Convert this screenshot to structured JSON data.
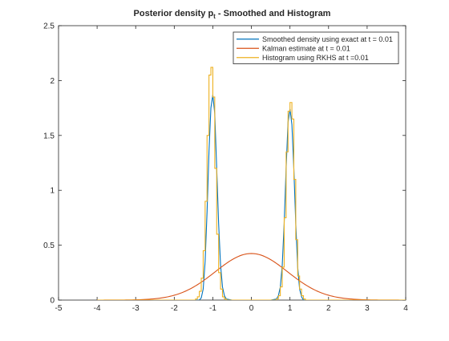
{
  "chart_data": {
    "type": "line",
    "title": "Posterior density p",
    "title_subscript": "t",
    "title_suffix": " - Smoothed and Histogram",
    "xlabel": "",
    "ylabel": "",
    "xlim": [
      -5,
      4
    ],
    "ylim": [
      0,
      2.5
    ],
    "xticks": [
      -5,
      -4,
      -3,
      -2,
      -1,
      0,
      1,
      2,
      3,
      4
    ],
    "xtick_labels": [
      "-5",
      "-4",
      "-3",
      "-2",
      "-1",
      "0",
      "1",
      "2",
      "3",
      "4"
    ],
    "yticks": [
      0,
      0.5,
      1,
      1.5,
      2,
      2.5
    ],
    "ytick_labels": [
      "0",
      "0.5",
      "1",
      "1.5",
      "2",
      "2.5"
    ],
    "grid": false,
    "legend_position": "top-right",
    "series": [
      {
        "name": "Smoothed density using exact at t = 0.01",
        "color": "#0072BD",
        "style": "line",
        "x": [
          -4,
          -1.5,
          -1.35,
          -1.3,
          -1.25,
          -1.2,
          -1.15,
          -1.1,
          -1.05,
          -1.0,
          -0.95,
          -0.9,
          -0.85,
          -0.8,
          -0.75,
          -0.7,
          -0.65,
          -0.5,
          0,
          0.5,
          0.65,
          0.7,
          0.75,
          0.8,
          0.85,
          0.9,
          0.95,
          1.0,
          1.05,
          1.1,
          1.15,
          1.2,
          1.25,
          1.3,
          1.35,
          1.5,
          4
        ],
        "y": [
          0,
          0,
          0.0,
          0.02,
          0.1,
          0.35,
          0.8,
          1.35,
          1.75,
          1.87,
          1.7,
          1.2,
          0.7,
          0.32,
          0.12,
          0.04,
          0.01,
          0,
          0,
          0,
          0.01,
          0.04,
          0.12,
          0.32,
          0.7,
          1.2,
          1.62,
          1.74,
          1.6,
          1.2,
          0.7,
          0.3,
          0.1,
          0.03,
          0.0,
          0,
          0
        ]
      },
      {
        "name": "Kalman estimate at t = 0.01",
        "color": "#D95319",
        "style": "line",
        "gaussian": {
          "mean": 0.0,
          "sigma": 0.94,
          "xmin": -4,
          "xmax": 4,
          "points": 161
        }
      },
      {
        "name": "Histogram using RKHS at t =0.01",
        "color": "#EDB120",
        "style": "step",
        "edges": [
          -4,
          -1.45,
          -1.4,
          -1.35,
          -1.3,
          -1.25,
          -1.2,
          -1.15,
          -1.1,
          -1.05,
          -1.0,
          -0.95,
          -0.9,
          -0.85,
          -0.8,
          -0.75,
          -0.7,
          -0.65,
          0.65,
          0.7,
          0.75,
          0.8,
          0.85,
          0.9,
          0.95,
          1.0,
          1.05,
          1.1,
          1.15,
          1.2,
          1.25,
          1.3,
          1.35,
          1.4,
          4
        ],
        "counts": [
          0,
          0.01,
          0.03,
          0.08,
          0.2,
          0.45,
          0.9,
          1.5,
          2.05,
          2.12,
          1.85,
          1.2,
          0.6,
          0.25,
          0.1,
          0.03,
          0.01,
          0,
          0.01,
          0.04,
          0.12,
          0.3,
          0.75,
          1.35,
          1.72,
          1.8,
          1.65,
          1.1,
          0.55,
          0.22,
          0.1,
          0.04,
          0.01,
          0
        ]
      }
    ]
  }
}
